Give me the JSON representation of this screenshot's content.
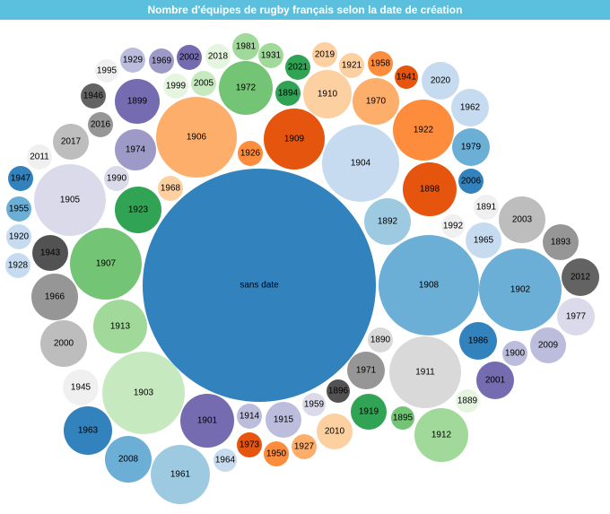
{
  "chart_data": {
    "type": "bubble",
    "title": "Nombre d'équipes de rugby français selon la date de création",
    "bubbles": [
      {
        "label": "sans date",
        "value": 700,
        "color": "#3182bd"
      },
      {
        "label": "1908",
        "value": 120,
        "color": "#6baed6"
      },
      {
        "label": "1902",
        "value": 120,
        "color": "#6baed6"
      },
      {
        "label": "1905",
        "value": 85,
        "color": "#dadaeb"
      },
      {
        "label": "1903",
        "value": 88,
        "color": "#c7e9c0"
      },
      {
        "label": "1906",
        "value": 85,
        "color": "#fdae6b"
      },
      {
        "label": "1904",
        "value": 78,
        "color": "#c6dbef"
      },
      {
        "label": "1911",
        "value": 70,
        "color": "#d9d9d9"
      },
      {
        "label": "1907",
        "value": 57,
        "color": "#74c476"
      },
      {
        "label": "1899",
        "value": 40,
        "color": "#756bb1"
      },
      {
        "label": "1972",
        "value": 38,
        "color": "#74c476"
      },
      {
        "label": "1922",
        "value": 46,
        "color": "#fd8d3c"
      },
      {
        "label": "1909",
        "value": 45,
        "color": "#e6550d"
      },
      {
        "label": "1912",
        "value": 38,
        "color": "#a1d99b"
      },
      {
        "label": "1961",
        "value": 38,
        "color": "#9ecae1"
      },
      {
        "label": "1901",
        "value": 38,
        "color": "#756bb1"
      },
      {
        "label": "1913",
        "value": 32,
        "color": "#a1d99b"
      },
      {
        "label": "1910",
        "value": 30,
        "color": "#fdd0a2"
      },
      {
        "label": "1898",
        "value": 32,
        "color": "#e6550d"
      },
      {
        "label": "1970",
        "value": 28,
        "color": "#fdae6b"
      },
      {
        "label": "1966",
        "value": 28,
        "color": "#969696"
      },
      {
        "label": "2000",
        "value": 28,
        "color": "#bdbdbd"
      },
      {
        "label": "2008",
        "value": 28,
        "color": "#6baed6"
      },
      {
        "label": "1963",
        "value": 29,
        "color": "#3182bd"
      },
      {
        "label": "1986",
        "value": 24,
        "color": "#3182bd"
      },
      {
        "label": "2003",
        "value": 24,
        "color": "#bdbdbd"
      },
      {
        "label": "1892",
        "value": 26,
        "color": "#9ecae1"
      },
      {
        "label": "1923",
        "value": 26,
        "color": "#31a354"
      },
      {
        "label": "1974",
        "value": 24,
        "color": "#9e9ac8"
      },
      {
        "label": "1971",
        "value": 22,
        "color": "#969696"
      },
      {
        "label": "2001",
        "value": 22,
        "color": "#756bb1"
      },
      {
        "label": "2017",
        "value": 20,
        "color": "#bdbdbd"
      },
      {
        "label": "1915",
        "value": 20,
        "color": "#bcbddc"
      },
      {
        "label": "2010",
        "value": 20,
        "color": "#fdd0a2"
      },
      {
        "label": "1919",
        "value": 20,
        "color": "#31a354"
      },
      {
        "label": "1943",
        "value": 20,
        "color": "#525252"
      },
      {
        "label": "1977",
        "value": 20,
        "color": "#dadaeb"
      },
      {
        "label": "2009",
        "value": 20,
        "color": "#bcbddc"
      },
      {
        "label": "2020",
        "value": 20,
        "color": "#c6dbef"
      },
      {
        "label": "1962",
        "value": 20,
        "color": "#c6dbef"
      },
      {
        "label": "1979",
        "value": 20,
        "color": "#6baed6"
      },
      {
        "label": "1965",
        "value": 20,
        "color": "#c6dbef"
      },
      {
        "label": "1893",
        "value": 20,
        "color": "#969696"
      },
      {
        "label": "2012",
        "value": 20,
        "color": "#636363"
      },
      {
        "label": "1945",
        "value": 20,
        "color": "#f0f0f0"
      },
      {
        "label": "1901b",
        "value": 0,
        "color": "#756bb1"
      },
      {
        "label": "1981",
        "value": 14,
        "color": "#a1d99b"
      },
      {
        "label": "1931",
        "value": 14,
        "color": "#a1d99b"
      },
      {
        "label": "2021",
        "value": 14,
        "color": "#31a354"
      },
      {
        "label": "2019",
        "value": 14,
        "color": "#fdd0a2"
      },
      {
        "label": "1921",
        "value": 14,
        "color": "#fdd0a2"
      },
      {
        "label": "1958",
        "value": 14,
        "color": "#fd8d3c"
      },
      {
        "label": "1941",
        "value": 13,
        "color": "#e6550d"
      },
      {
        "label": "1929",
        "value": 14,
        "color": "#bcbddc"
      },
      {
        "label": "1969",
        "value": 14,
        "color": "#9e9ac8"
      },
      {
        "label": "2002",
        "value": 14,
        "color": "#756bb1"
      },
      {
        "label": "2018",
        "value": 14,
        "color": "#e5f5e0"
      },
      {
        "label": "1995",
        "value": 13,
        "color": "#f0f0f0"
      },
      {
        "label": "1999",
        "value": 13,
        "color": "#e5f5e0"
      },
      {
        "label": "2005",
        "value": 14,
        "color": "#c7e9c0"
      },
      {
        "label": "1894",
        "value": 14,
        "color": "#31a354"
      },
      {
        "label": "1946",
        "value": 14,
        "color": "#636363"
      },
      {
        "label": "2016",
        "value": 14,
        "color": "#969696"
      },
      {
        "label": "1926",
        "value": 14,
        "color": "#fd8d3c"
      },
      {
        "label": "2011",
        "value": 14,
        "color": "#f0f0f0"
      },
      {
        "label": "1990",
        "value": 14,
        "color": "#dadaeb"
      },
      {
        "label": "1968",
        "value": 14,
        "color": "#fdd0a2"
      },
      {
        "label": "1947",
        "value": 14,
        "color": "#3182bd"
      },
      {
        "label": "1955",
        "value": 14,
        "color": "#6baed6"
      },
      {
        "label": "1920",
        "value": 14,
        "color": "#c6dbef"
      },
      {
        "label": "1928",
        "value": 14,
        "color": "#c6dbef"
      },
      {
        "label": "2006",
        "value": 14,
        "color": "#3182bd"
      },
      {
        "label": "1891",
        "value": 14,
        "color": "#f0f0f0"
      },
      {
        "label": "1992",
        "value": 13,
        "color": "#f0f0f0"
      },
      {
        "label": "1890",
        "value": 14,
        "color": "#d9d9d9"
      },
      {
        "label": "1900",
        "value": 14,
        "color": "#bcbddc"
      },
      {
        "label": "1896",
        "value": 13,
        "color": "#525252"
      },
      {
        "label": "1959",
        "value": 13,
        "color": "#dadaeb"
      },
      {
        "label": "1914",
        "value": 14,
        "color": "#bcbddc"
      },
      {
        "label": "1895",
        "value": 13,
        "color": "#74c476"
      },
      {
        "label": "1889",
        "value": 13,
        "color": "#e5f5e0"
      },
      {
        "label": "1973",
        "value": 14,
        "color": "#e6550d"
      },
      {
        "label": "1950",
        "value": 14,
        "color": "#fd8d3c"
      },
      {
        "label": "1927",
        "value": 14,
        "color": "#fdae6b"
      },
      {
        "label": "1964",
        "value": 13,
        "color": "#c6dbef"
      }
    ]
  }
}
